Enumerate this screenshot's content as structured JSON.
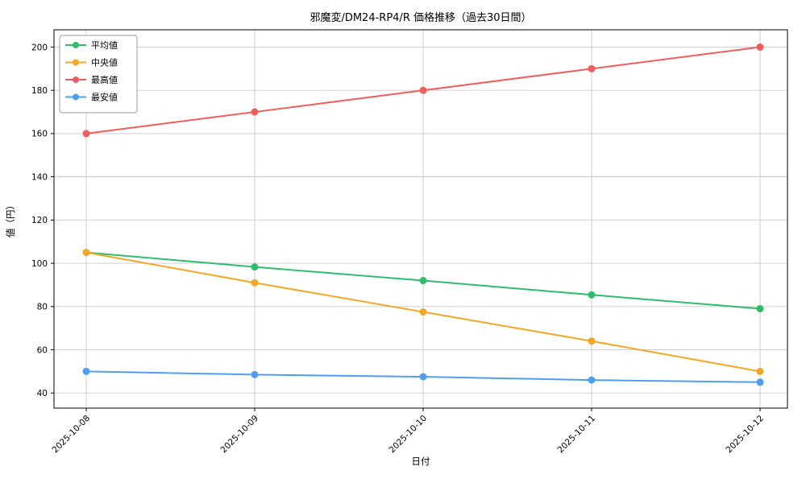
{
  "chart_data": {
    "type": "line",
    "title": "邪魔変/DM24-RP4/R 価格推移（過去30日間）",
    "xlabel": "日付",
    "ylabel": "値（円）",
    "x": [
      "2025-10-08",
      "2025-10-09",
      "2025-10-10",
      "2025-10-11",
      "2025-10-12"
    ],
    "series": [
      {
        "name": "平均値",
        "color": "#2dbd6c",
        "values": [
          105,
          98.3,
          92,
          85.4,
          79
        ]
      },
      {
        "name": "中央値",
        "color": "#f5a623",
        "values": [
          105,
          91,
          77.5,
          64,
          50
        ]
      },
      {
        "name": "最高値",
        "color": "#f25c5c",
        "values": [
          160,
          170,
          180,
          190,
          200
        ]
      },
      {
        "name": "最安値",
        "color": "#4d9ff0",
        "values": [
          50,
          48.5,
          47.5,
          46,
          45
        ]
      }
    ],
    "ylim": [
      33,
      208
    ],
    "yticks": [
      40,
      60,
      80,
      100,
      120,
      140,
      160,
      180,
      200
    ],
    "grid": true,
    "legend_position": "upper left",
    "colors": {
      "grid": "#c9c9c9",
      "spine": "#000000",
      "legend_border": "#999999",
      "background": "#ffffff"
    }
  }
}
